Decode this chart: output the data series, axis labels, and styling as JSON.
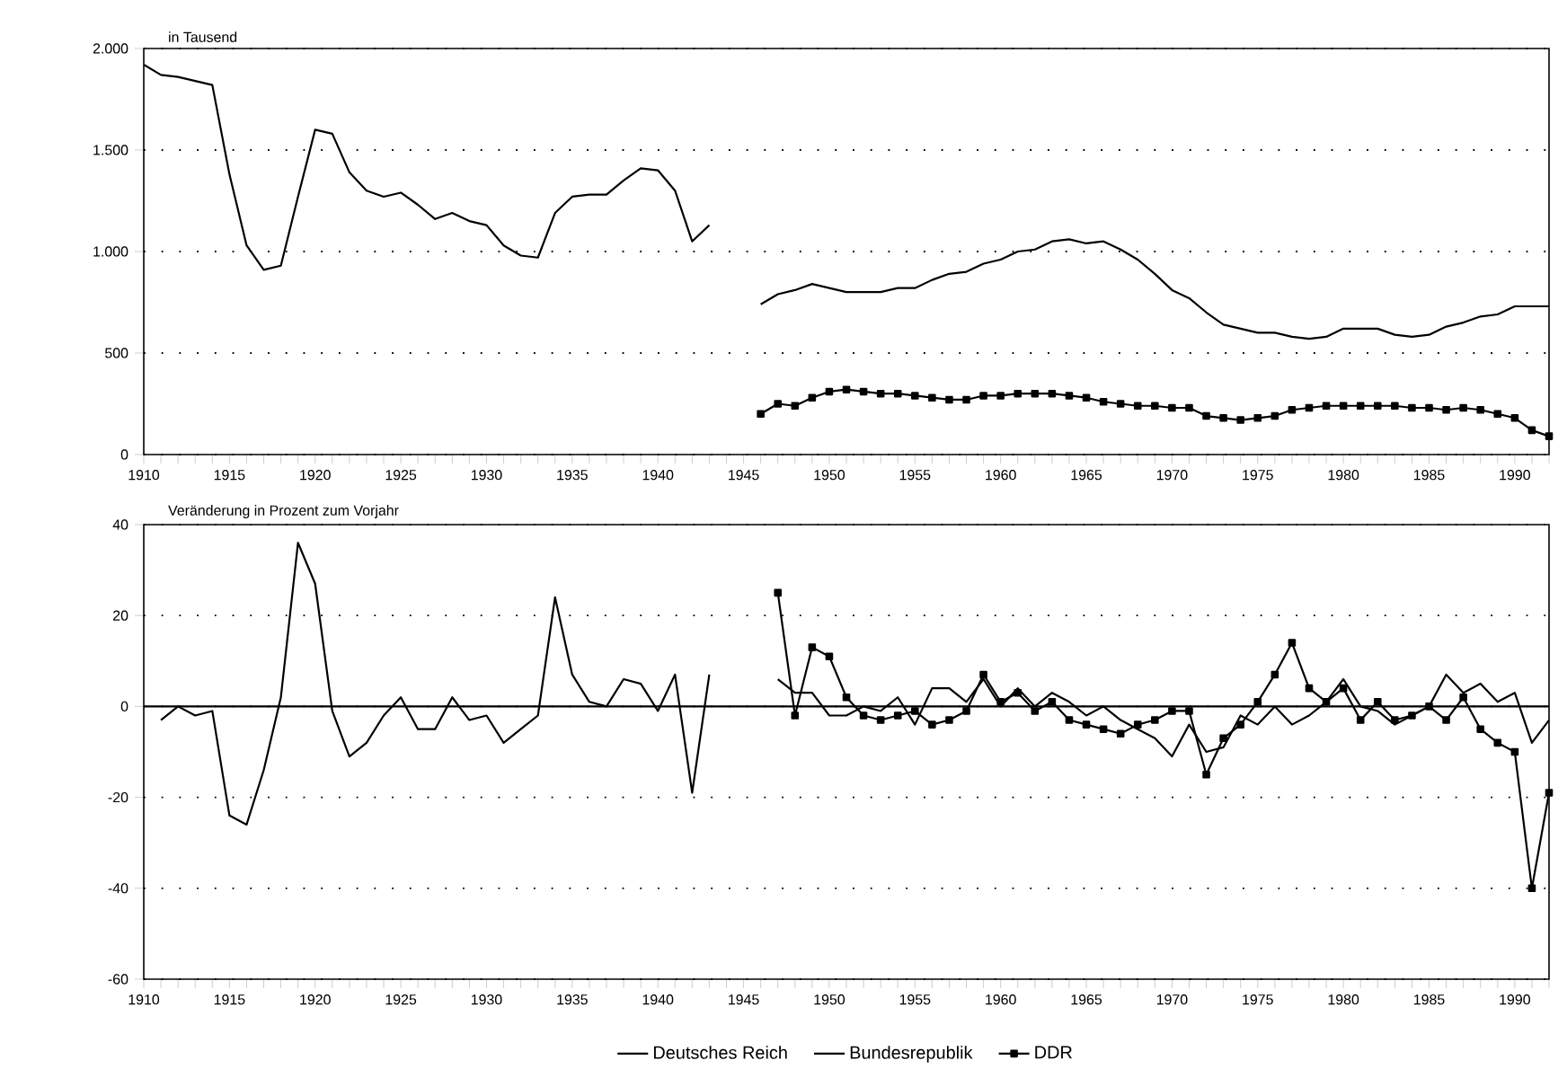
{
  "chart_data": [
    {
      "type": "line",
      "ylabel": "in Tausend",
      "xlim": [
        1910,
        1992
      ],
      "ylim": [
        0,
        2000
      ],
      "xticks": [
        1910,
        {
          "value": 1911,
          "label": null
        },
        {
          "value": 1912,
          "label": null
        },
        {
          "value": 1913,
          "label": null
        },
        {
          "value": 1914,
          "label": null
        },
        1915,
        {
          "value": 1916,
          "label": null
        },
        {
          "value": 1917,
          "label": null
        },
        {
          "value": 1918,
          "label": null
        },
        {
          "value": 1919,
          "label": null
        },
        1920,
        {
          "value": 1921,
          "label": null
        },
        {
          "value": 1922,
          "label": null
        },
        {
          "value": 1923,
          "label": null
        },
        {
          "value": 1924,
          "label": null
        },
        1925,
        {
          "value": 1926,
          "label": null
        },
        {
          "value": 1927,
          "label": null
        },
        {
          "value": 1928,
          "label": null
        },
        {
          "value": 1929,
          "label": null
        },
        1930,
        {
          "value": 1931,
          "label": null
        },
        {
          "value": 1932,
          "label": null
        },
        {
          "value": 1933,
          "label": null
        },
        {
          "value": 1934,
          "label": null
        },
        1935,
        {
          "value": 1936,
          "label": null
        },
        {
          "value": 1937,
          "label": null
        },
        {
          "value": 1938,
          "label": null
        },
        {
          "value": 1939,
          "label": null
        },
        1940,
        {
          "value": 1941,
          "label": null
        },
        {
          "value": 1942,
          "label": null
        },
        {
          "value": 1943,
          "label": null
        },
        {
          "value": 1944,
          "label": null
        },
        1945,
        {
          "value": 1946,
          "label": null
        },
        {
          "value": 1947,
          "label": null
        },
        {
          "value": 1948,
          "label": null
        },
        {
          "value": 1949,
          "label": null
        },
        1950,
        {
          "value": 1951,
          "label": null
        },
        {
          "value": 1952,
          "label": null
        },
        {
          "value": 1953,
          "label": null
        },
        {
          "value": 1954,
          "label": null
        },
        1955,
        {
          "value": 1956,
          "label": null
        },
        {
          "value": 1957,
          "label": null
        },
        {
          "value": 1958,
          "label": null
        },
        {
          "value": 1959,
          "label": null
        },
        1960,
        {
          "value": 1961,
          "label": null
        },
        {
          "value": 1962,
          "label": null
        },
        {
          "value": 1963,
          "label": null
        },
        {
          "value": 1964,
          "label": null
        },
        1965,
        {
          "value": 1966,
          "label": null
        },
        {
          "value": 1967,
          "label": null
        },
        {
          "value": 1968,
          "label": null
        },
        {
          "value": 1969,
          "label": null
        },
        1970,
        {
          "value": 1971,
          "label": null
        },
        {
          "value": 1972,
          "label": null
        },
        {
          "value": 1973,
          "label": null
        },
        {
          "value": 1974,
          "label": null
        },
        1975,
        {
          "value": 1976,
          "label": null
        },
        {
          "value": 1977,
          "label": null
        },
        {
          "value": 1978,
          "label": null
        },
        {
          "value": 1979,
          "label": null
        },
        1980,
        {
          "value": 1981,
          "label": null
        },
        {
          "value": 1982,
          "label": null
        },
        {
          "value": 1983,
          "label": null
        },
        {
          "value": 1984,
          "label": null
        },
        1985,
        {
          "value": 1986,
          "label": null
        },
        {
          "value": 1987,
          "label": null
        },
        {
          "value": 1988,
          "label": null
        },
        {
          "value": 1989,
          "label": null
        },
        1990,
        {
          "value": 1991,
          "label": null
        },
        {
          "value": 1992,
          "label": null
        }
      ],
      "yticks": [
        0,
        500,
        {
          "value": 1000,
          "label": "1.000"
        },
        {
          "value": 1500,
          "label": "1.500"
        },
        {
          "value": 2000,
          "label": "2.000"
        }
      ],
      "grid": "y",
      "legend": false,
      "series": [
        {
          "color": "#000000",
          "marker": "none",
          "x": [
            1910,
            1911,
            1912,
            1913,
            1914,
            1915,
            1916,
            1917,
            1918,
            1919,
            1920,
            1921,
            1922,
            1923,
            1924,
            1925,
            1926,
            1927,
            1928,
            1929,
            1930,
            1931,
            1932,
            1933,
            1934,
            1935,
            1936,
            1937,
            1938,
            1939,
            1940,
            1941,
            1942,
            1943
          ],
          "values": [
            1920,
            1870,
            1860,
            1840,
            1820,
            1380,
            1030,
            910,
            930,
            1270,
            1600,
            1580,
            1390,
            1300,
            1270,
            1290,
            1230,
            1160,
            1190,
            1150,
            1130,
            1030,
            980,
            970,
            1190,
            1270,
            1280,
            1280,
            1350,
            1410,
            1400,
            1300,
            1050,
            1130
          ]
        },
        {
          "color": "#000000",
          "marker": "none",
          "x": [
            1946,
            1947,
            1948,
            1949,
            1950,
            1951,
            1952,
            1953,
            1954,
            1955,
            1956,
            1957,
            1958,
            1959,
            1960,
            1961,
            1962,
            1963,
            1964,
            1965,
            1966,
            1967,
            1968,
            1969,
            1970,
            1971,
            1972,
            1973,
            1974,
            1975,
            1976,
            1977,
            1978,
            1979,
            1980,
            1981,
            1982,
            1983,
            1984,
            1985,
            1986,
            1987,
            1988,
            1989,
            1990,
            1991,
            1992
          ],
          "values": [
            740,
            790,
            810,
            840,
            820,
            800,
            800,
            800,
            820,
            820,
            860,
            890,
            900,
            940,
            960,
            1000,
            1010,
            1050,
            1060,
            1040,
            1050,
            1010,
            960,
            890,
            810,
            770,
            700,
            640,
            620,
            600,
            600,
            580,
            570,
            580,
            620,
            620,
            620,
            590,
            580,
            590,
            630,
            650,
            680,
            690,
            730,
            730,
            730
          ]
        },
        {
          "color": "#000000",
          "marker": "square",
          "x": [
            1946,
            1947,
            1948,
            1949,
            1950,
            1951,
            1952,
            1953,
            1954,
            1955,
            1956,
            1957,
            1958,
            1959,
            1960,
            1961,
            1962,
            1963,
            1964,
            1965,
            1966,
            1967,
            1968,
            1969,
            1970,
            1971,
            1972,
            1973,
            1974,
            1975,
            1976,
            1977,
            1978,
            1979,
            1980,
            1981,
            1982,
            1983,
            1984,
            1985,
            1986,
            1987,
            1988,
            1989,
            1990,
            1991,
            1992
          ],
          "values": [
            200,
            250,
            240,
            280,
            310,
            320,
            310,
            300,
            300,
            290,
            280,
            270,
            270,
            290,
            290,
            300,
            300,
            300,
            290,
            280,
            260,
            250,
            240,
            240,
            230,
            230,
            190,
            180,
            170,
            180,
            190,
            220,
            230,
            240,
            240,
            240,
            240,
            240,
            230,
            230,
            220,
            230,
            220,
            200,
            180,
            120,
            90
          ]
        }
      ]
    },
    {
      "type": "line",
      "ylabel": "Veränderung in Prozent zum Vorjahr",
      "xlim": [
        1910,
        1992
      ],
      "ylim": [
        -60,
        40
      ],
      "xticks": [
        1910,
        {
          "value": 1911,
          "label": null
        },
        {
          "value": 1912,
          "label": null
        },
        {
          "value": 1913,
          "label": null
        },
        {
          "value": 1914,
          "label": null
        },
        1915,
        {
          "value": 1916,
          "label": null
        },
        {
          "value": 1917,
          "label": null
        },
        {
          "value": 1918,
          "label": null
        },
        {
          "value": 1919,
          "label": null
        },
        1920,
        {
          "value": 1921,
          "label": null
        },
        {
          "value": 1922,
          "label": null
        },
        {
          "value": 1923,
          "label": null
        },
        {
          "value": 1924,
          "label": null
        },
        1925,
        {
          "value": 1926,
          "label": null
        },
        {
          "value": 1927,
          "label": null
        },
        {
          "value": 1928,
          "label": null
        },
        {
          "value": 1929,
          "label": null
        },
        1930,
        {
          "value": 1931,
          "label": null
        },
        {
          "value": 1932,
          "label": null
        },
        {
          "value": 1933,
          "label": null
        },
        {
          "value": 1934,
          "label": null
        },
        1935,
        {
          "value": 1936,
          "label": null
        },
        {
          "value": 1937,
          "label": null
        },
        {
          "value": 1938,
          "label": null
        },
        {
          "value": 1939,
          "label": null
        },
        1940,
        {
          "value": 1941,
          "label": null
        },
        {
          "value": 1942,
          "label": null
        },
        {
          "value": 1943,
          "label": null
        },
        {
          "value": 1944,
          "label": null
        },
        1945,
        {
          "value": 1946,
          "label": null
        },
        {
          "value": 1947,
          "label": null
        },
        {
          "value": 1948,
          "label": null
        },
        {
          "value": 1949,
          "label": null
        },
        1950,
        {
          "value": 1951,
          "label": null
        },
        {
          "value": 1952,
          "label": null
        },
        {
          "value": 1953,
          "label": null
        },
        {
          "value": 1954,
          "label": null
        },
        1955,
        {
          "value": 1956,
          "label": null
        },
        {
          "value": 1957,
          "label": null
        },
        {
          "value": 1958,
          "label": null
        },
        {
          "value": 1959,
          "label": null
        },
        1960,
        {
          "value": 1961,
          "label": null
        },
        {
          "value": 1962,
          "label": null
        },
        {
          "value": 1963,
          "label": null
        },
        {
          "value": 1964,
          "label": null
        },
        1965,
        {
          "value": 1966,
          "label": null
        },
        {
          "value": 1967,
          "label": null
        },
        {
          "value": 1968,
          "label": null
        },
        {
          "value": 1969,
          "label": null
        },
        1970,
        {
          "value": 1971,
          "label": null
        },
        {
          "value": 1972,
          "label": null
        },
        {
          "value": 1973,
          "label": null
        },
        {
          "value": 1974,
          "label": null
        },
        1975,
        {
          "value": 1976,
          "label": null
        },
        {
          "value": 1977,
          "label": null
        },
        {
          "value": 1978,
          "label": null
        },
        {
          "value": 1979,
          "label": null
        },
        1980,
        {
          "value": 1981,
          "label": null
        },
        {
          "value": 1982,
          "label": null
        },
        {
          "value": 1983,
          "label": null
        },
        {
          "value": 1984,
          "label": null
        },
        1985,
        {
          "value": 1986,
          "label": null
        },
        {
          "value": 1987,
          "label": null
        },
        {
          "value": 1988,
          "label": null
        },
        {
          "value": 1989,
          "label": null
        },
        1990,
        {
          "value": 1991,
          "label": null
        },
        {
          "value": 1992,
          "label": null
        }
      ],
      "yticks": [
        -60,
        -40,
        -20,
        0,
        20,
        40
      ],
      "grid": "y",
      "legend": "bottom",
      "ref_lines": [
        {
          "axis": "y",
          "value": 0
        }
      ],
      "series": [
        {
          "name": "Deutsches Reich",
          "color": "#000000",
          "marker": "none",
          "x": [
            1911,
            1912,
            1913,
            1914,
            1915,
            1916,
            1917,
            1918,
            1919,
            1920,
            1921,
            1922,
            1923,
            1924,
            1925,
            1926,
            1927,
            1928,
            1929,
            1930,
            1931,
            1932,
            1933,
            1934,
            1935,
            1936,
            1937,
            1938,
            1939,
            1940,
            1941,
            1942,
            1943
          ],
          "values": [
            -3,
            0,
            -2,
            -1,
            -24,
            -26,
            -14,
            2,
            36,
            27,
            -1,
            -11,
            -8,
            -2,
            2,
            -5,
            -5,
            2,
            -3,
            -2,
            -8,
            -5,
            -2,
            24,
            7,
            1,
            0,
            6,
            5,
            -1,
            7,
            -19,
            7
          ]
        },
        {
          "name": "Bundesrepublik",
          "color": "#000000",
          "marker": "none",
          "x": [
            1947,
            1948,
            1949,
            1950,
            1951,
            1952,
            1953,
            1954,
            1955,
            1956,
            1957,
            1958,
            1959,
            1960,
            1961,
            1962,
            1963,
            1964,
            1965,
            1966,
            1967,
            1968,
            1969,
            1970,
            1971,
            1972,
            1973,
            1974,
            1975,
            1976,
            1977,
            1978,
            1979,
            1980,
            1981,
            1982,
            1983,
            1984,
            1985,
            1986,
            1987,
            1988,
            1989,
            1990,
            1991,
            1992
          ],
          "values": [
            6,
            3,
            3,
            -2,
            -2,
            0,
            -1,
            2,
            -4,
            4,
            4,
            1,
            6,
            0,
            4,
            0,
            3,
            1,
            -2,
            0,
            -3,
            -5,
            -7,
            -11,
            -4,
            -10,
            -9,
            -2,
            -4,
            0,
            -4,
            -2,
            1,
            6,
            0,
            -1,
            -4,
            -2,
            0,
            7,
            3,
            5,
            1,
            3,
            -8,
            -3
          ]
        },
        {
          "name": "DDR",
          "color": "#000000",
          "marker": "square",
          "x": [
            1947,
            1948,
            1949,
            1950,
            1951,
            1952,
            1953,
            1954,
            1955,
            1956,
            1957,
            1958,
            1959,
            1960,
            1961,
            1962,
            1963,
            1964,
            1965,
            1966,
            1967,
            1968,
            1969,
            1970,
            1971,
            1972,
            1973,
            1974,
            1975,
            1976,
            1977,
            1978,
            1979,
            1980,
            1981,
            1982,
            1983,
            1984,
            1985,
            1986,
            1987,
            1988,
            1989,
            1990,
            1991,
            1992
          ],
          "values": [
            25,
            -2,
            13,
            11,
            2,
            -2,
            -3,
            -2,
            -1,
            -4,
            -3,
            -1,
            7,
            1,
            3,
            -1,
            1,
            -3,
            -4,
            -5,
            -6,
            -4,
            -3,
            -1,
            -1,
            -15,
            -7,
            -4,
            1,
            7,
            14,
            4,
            1,
            4,
            -3,
            1,
            -3,
            -2,
            0,
            -3,
            2,
            -5,
            -8,
            -10,
            -40,
            -19
          ]
        }
      ]
    }
  ]
}
